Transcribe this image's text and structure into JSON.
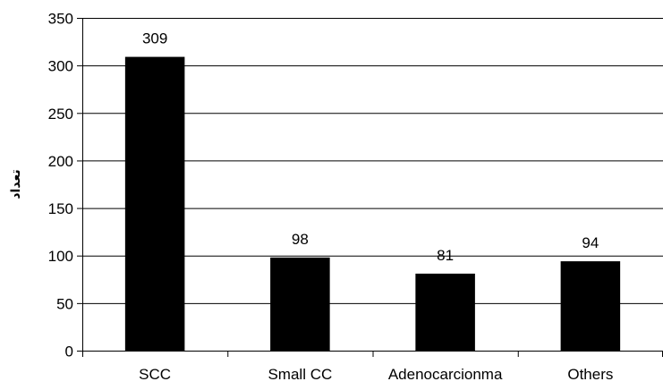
{
  "chart_data": {
    "type": "bar",
    "title": "",
    "xlabel": "",
    "ylabel": "تعداد",
    "categories": [
      "SCC",
      "Small CC",
      "Adenocarcionma",
      "Others"
    ],
    "values": [
      309,
      98,
      81,
      94
    ],
    "data_labels": [
      "309",
      "98",
      "81",
      "94"
    ],
    "ylim": [
      0,
      350
    ],
    "yticks": [
      0,
      50,
      100,
      150,
      200,
      250,
      300,
      350
    ],
    "grid": true,
    "legend": "none",
    "bar_color": "#000000"
  }
}
